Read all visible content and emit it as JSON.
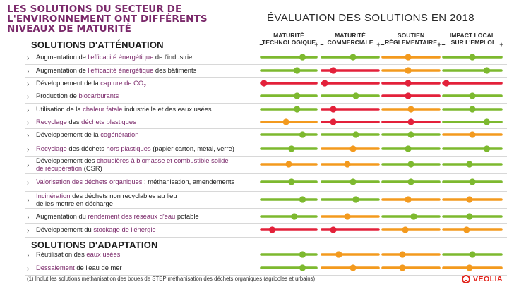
{
  "title": {
    "line1": "LES SOLUTIONS DU SECTEUR DE",
    "line2": "L'ENVIRONNEMENT ONT DIFFÉRENTS",
    "line3": "NIVEAUX DE MATURITÉ"
  },
  "evaluation_title": "ÉVALUATION DES SOLUTIONS EN 2018",
  "sections": {
    "mitigation": "SOLUTIONS D'ATTÉNUATION",
    "adaptation": "SOLUTIONS D'ADAPTATION"
  },
  "columns": [
    {
      "line1": "MATURITÉ",
      "line2": "TECHNOLOGIQUE"
    },
    {
      "line1": "MATURITÉ",
      "line2": "COMMERCIALE"
    },
    {
      "line1": "SOUTIEN",
      "line2": "RÉGLEMENTAIRE"
    },
    {
      "line1": "IMPACT LOCAL",
      "line2": "SUR L'EMPLOI"
    }
  ],
  "scale": {
    "minus": "–",
    "plus": "+"
  },
  "colors": {
    "green": "#7db92f",
    "orange": "#f39a1e",
    "red": "#e3213a",
    "purple": "#7b2a6b"
  },
  "rows": [
    {
      "parts": [
        [
          "Augmentation de ",
          0
        ],
        [
          "l'efficacité énergétique",
          1
        ],
        [
          " de l'industrie",
          0
        ]
      ]
    },
    {
      "parts": [
        [
          "Augmentation de ",
          0
        ],
        [
          "l'efficacité énergétique",
          1
        ],
        [
          " des bâtiments",
          0
        ]
      ]
    },
    {
      "parts": [
        [
          "Développement de la ",
          0
        ],
        [
          "capture de CO",
          1
        ],
        [
          "2",
          2
        ]
      ]
    },
    {
      "parts": [
        [
          "Production de ",
          0
        ],
        [
          "biocarburants",
          1
        ]
      ]
    },
    {
      "parts": [
        [
          "Utilisation de la ",
          0
        ],
        [
          "chaleur fatale",
          1
        ],
        [
          " industrielle et des eaux usées",
          0
        ]
      ]
    },
    {
      "parts": [
        [
          "Recyclage",
          1
        ],
        [
          " des ",
          0
        ],
        [
          "déchets plastiques",
          1
        ]
      ]
    },
    {
      "parts": [
        [
          "Développement de la ",
          0
        ],
        [
          "cogénération",
          1
        ]
      ]
    },
    {
      "parts": [
        [
          "Recyclage",
          1
        ],
        [
          " des déchets ",
          0
        ],
        [
          "hors plastiques",
          1
        ],
        [
          " (papier carton, métal, verre)",
          0
        ]
      ]
    },
    {
      "parts": [
        [
          "Développement des ",
          0
        ],
        [
          "chaudières à biomasse et combustible solide",
          1
        ],
        [
          "\n",
          0
        ],
        [
          "de récupération",
          1
        ],
        [
          " (CSR)",
          0
        ]
      ]
    },
    {
      "parts": [
        [
          "Valorisation des déchets organiques",
          1
        ],
        [
          " : méthanisation, amendements",
          0
        ]
      ]
    },
    {
      "parts": [
        [
          "Incinération",
          1
        ],
        [
          " des déchets non recyclables au lieu",
          0
        ],
        [
          "\n",
          0
        ],
        [
          "de les mettre en décharge",
          0
        ]
      ]
    },
    {
      "parts": [
        [
          "Augmentation du ",
          0
        ],
        [
          "rendement des réseaux d'eau",
          1
        ],
        [
          " potable",
          0
        ]
      ]
    },
    {
      "parts": [
        [
          "Développement du ",
          0
        ],
        [
          "stockage de l'énergie",
          1
        ]
      ]
    },
    {
      "parts": [
        [
          "Réutilisation des ",
          0
        ],
        [
          "eaux usées",
          1
        ]
      ]
    },
    {
      "parts": [
        [
          "Dessalement",
          1
        ],
        [
          " de l'eau de mer",
          0
        ]
      ]
    }
  ],
  "chart_data": {
    "type": "dot-rating",
    "title": "ÉVALUATION DES SOLUTIONS EN 2018",
    "scale": "0 (–) to 1 (+)",
    "categories": [
      "MATURITÉ TECHNOLOGIQUE",
      "MATURITÉ COMMERCIALE",
      "SOUTIEN RÉGLEMENTAIRE",
      "IMPACT LOCAL SUR L'EMPLOI"
    ],
    "items": [
      {
        "name": "Augmentation de l'efficacité énergétique de l'industrie",
        "ratings": [
          [
            0.75,
            "green"
          ],
          [
            0.55,
            "green"
          ],
          [
            0.45,
            "orange"
          ],
          [
            0.5,
            "green"
          ]
        ]
      },
      {
        "name": "Augmentation de l'efficacité énergétique des bâtiments",
        "ratings": [
          [
            0.65,
            "green"
          ],
          [
            0.2,
            "red"
          ],
          [
            0.45,
            "orange"
          ],
          [
            0.75,
            "green"
          ]
        ]
      },
      {
        "name": "Développement de la capture de CO2",
        "ratings": [
          [
            0.05,
            "red"
          ],
          [
            0.05,
            "red"
          ],
          [
            0.45,
            "red"
          ],
          [
            0.05,
            "red"
          ]
        ]
      },
      {
        "name": "Production de biocarburants",
        "ratings": [
          [
            0.65,
            "green"
          ],
          [
            0.6,
            "green"
          ],
          [
            0.45,
            "red"
          ],
          [
            0.5,
            "green"
          ]
        ]
      },
      {
        "name": "Utilisation de la chaleur fatale industrielle et des eaux usées",
        "ratings": [
          [
            0.65,
            "green"
          ],
          [
            0.2,
            "red"
          ],
          [
            0.5,
            "orange"
          ],
          [
            0.5,
            "green"
          ]
        ]
      },
      {
        "name": "Recyclage des déchets plastiques",
        "ratings": [
          [
            0.45,
            "orange"
          ],
          [
            0.2,
            "red"
          ],
          [
            0.5,
            "red"
          ],
          [
            0.75,
            "green"
          ]
        ]
      },
      {
        "name": "Développement de la cogénération",
        "ratings": [
          [
            0.75,
            "green"
          ],
          [
            0.6,
            "green"
          ],
          [
            0.5,
            "green"
          ],
          [
            0.5,
            "orange"
          ]
        ]
      },
      {
        "name": "Recyclage des déchets hors plastiques (papier carton, métal, verre)",
        "ratings": [
          [
            0.55,
            "green"
          ],
          [
            0.55,
            "orange"
          ],
          [
            0.45,
            "green"
          ],
          [
            0.75,
            "green"
          ]
        ]
      },
      {
        "name": "Développement des chaudières à biomasse et combustible solide de récupération (CSR)",
        "ratings": [
          [
            0.5,
            "orange"
          ],
          [
            0.45,
            "orange"
          ],
          [
            0.5,
            "green"
          ],
          [
            0.45,
            "green"
          ]
        ]
      },
      {
        "name": "Valorisation des déchets organiques : méthanisation, amendements",
        "ratings": [
          [
            0.55,
            "green"
          ],
          [
            0.55,
            "green"
          ],
          [
            0.5,
            "green"
          ],
          [
            0.5,
            "green"
          ]
        ]
      },
      {
        "name": "Incinération des déchets non recyclables au lieu de les mettre en décharge",
        "ratings": [
          [
            0.75,
            "green"
          ],
          [
            0.6,
            "green"
          ],
          [
            0.45,
            "orange"
          ],
          [
            0.45,
            "orange"
          ]
        ]
      },
      {
        "name": "Augmentation du rendement des réseaux d'eau potable",
        "ratings": [
          [
            0.6,
            "green"
          ],
          [
            0.45,
            "orange"
          ],
          [
            0.55,
            "green"
          ],
          [
            0.45,
            "green"
          ]
        ]
      },
      {
        "name": "Développement du stockage de l'énergie",
        "ratings": [
          [
            0.2,
            "red"
          ],
          [
            0.2,
            "red"
          ],
          [
            0.4,
            "orange"
          ],
          [
            0.4,
            "orange"
          ]
        ]
      },
      {
        "name": "Réutilisation des eaux usées",
        "ratings": [
          [
            0.75,
            "green"
          ],
          [
            0.3,
            "orange"
          ],
          [
            0.35,
            "orange"
          ],
          [
            0.5,
            "green"
          ]
        ]
      },
      {
        "name": "Dessalement de l'eau de mer",
        "ratings": [
          [
            0.75,
            "green"
          ],
          [
            0.55,
            "orange"
          ],
          [
            0.35,
            "orange"
          ],
          [
            0.45,
            "orange"
          ]
        ]
      }
    ]
  },
  "footnote": "(1) Inclut les solutions méthanisation des boues de STEP méthanisation des déchets organiques (agricoles et urbains)",
  "logo_text": "VEOLIA"
}
